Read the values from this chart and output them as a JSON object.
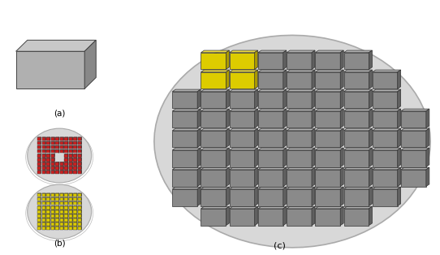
{
  "fig_width": 5.42,
  "fig_height": 3.14,
  "dpi": 100,
  "bg_color": "#ffffff",
  "label_a": "(a)",
  "label_b": "(b)",
  "label_c": "(c)",
  "stamp_color": "#b0b0b0",
  "stamp_top": "#c8c8c8",
  "stamp_right": "#888888",
  "wafer_color": "#d8d8d8",
  "wafer_edge": "#aaaaaa",
  "coupon_gray": "#8a8a8a",
  "coupon_gray_top": "#b0b0b0",
  "coupon_gray_right": "#606060",
  "coupon_red": "#cc2020",
  "coupon_red_top": "#dd4040",
  "coupon_red_right": "#881010",
  "coupon_yellow": "#ddcc00",
  "coupon_yellow_top": "#eedd44",
  "coupon_yellow_right": "#aa9900",
  "panel_border": "#cccccc"
}
